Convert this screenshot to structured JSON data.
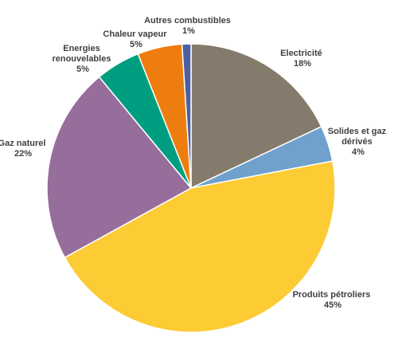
{
  "chart_data": {
    "type": "pie",
    "title": "",
    "start_angle_deg": 0,
    "direction": "clockwise",
    "legend": "none",
    "slices": [
      {
        "label_lines": [
          "Electricité"
        ],
        "value": 18,
        "value_label": "18%",
        "color": "#857B6C"
      },
      {
        "label_lines": [
          "Solides et gaz",
          "dérivés"
        ],
        "value": 4,
        "value_label": "4%",
        "color": "#6FA1CC"
      },
      {
        "label_lines": [
          "Produits pétroliers"
        ],
        "value": 45,
        "value_label": "45%",
        "color": "#FDCB33"
      },
      {
        "label_lines": [
          "Gaz naturel"
        ],
        "value": 22,
        "value_label": "22%",
        "color": "#976E9B"
      },
      {
        "label_lines": [
          "Energies",
          "renouvelables"
        ],
        "value": 5,
        "value_label": "5%",
        "color": "#009E80"
      },
      {
        "label_lines": [
          "Chaleur vapeur"
        ],
        "value": 5,
        "value_label": "5%",
        "color": "#EE7D0F"
      },
      {
        "label_lines": [
          "Autres combustibles"
        ],
        "value": 1,
        "value_label": "1%",
        "color": "#4C5FA0"
      }
    ]
  }
}
